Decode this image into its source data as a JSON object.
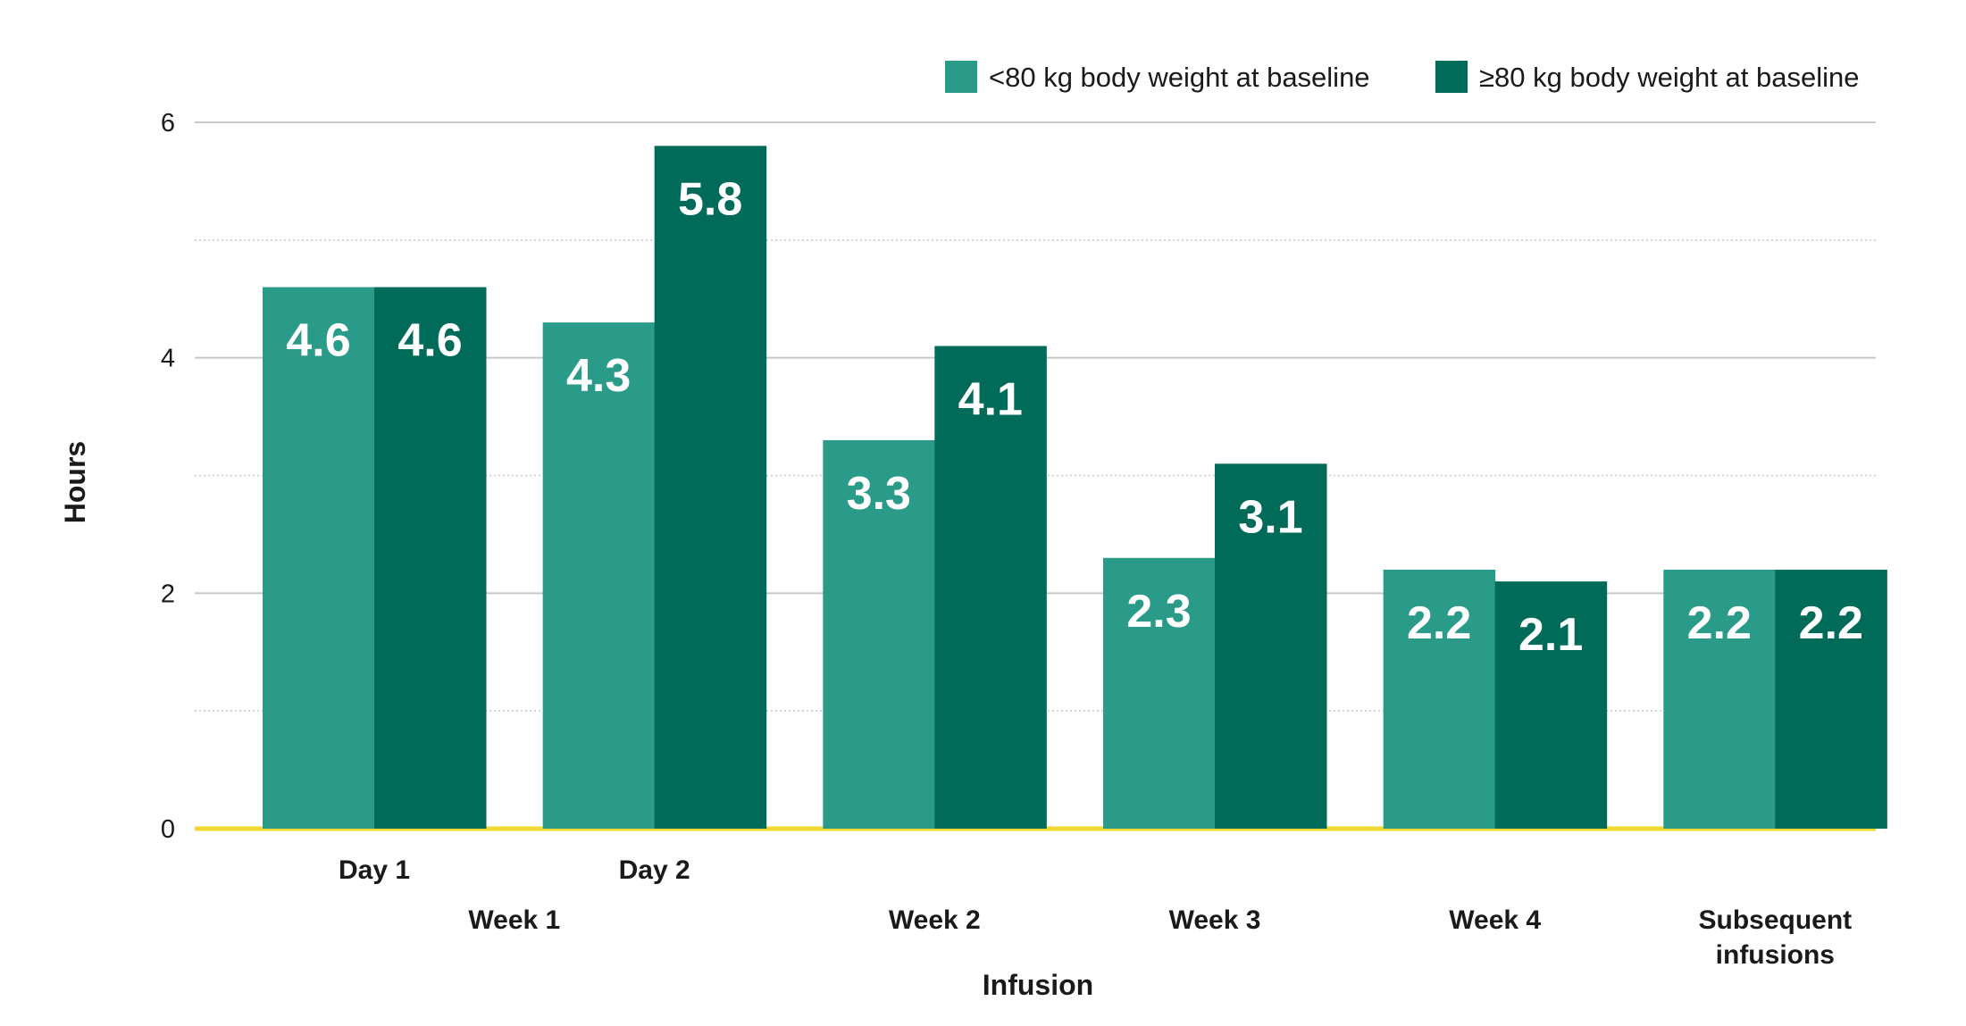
{
  "chart_data": {
    "type": "bar",
    "ylabel": "Hours",
    "xlabel": "Infusion",
    "ylim": [
      0,
      6
    ],
    "yticks": [
      0,
      2,
      4,
      6
    ],
    "grid": true,
    "legend_position": "top-right",
    "categories": [
      [
        "Day 1"
      ],
      [
        "Day 2"
      ],
      [
        "Week 2"
      ],
      [
        "Week 3"
      ],
      [
        "Week 4"
      ],
      [
        "Subsequent",
        "infusions"
      ]
    ],
    "category_groups": [
      {
        "label": "Week 1",
        "members": [
          0,
          1
        ]
      }
    ],
    "series": [
      {
        "name": "<80 kg body weight at baseline",
        "color": "#2a9a89",
        "values": [
          4.6,
          4.3,
          3.3,
          2.3,
          2.2,
          2.2
        ]
      },
      {
        "name": "≥80 kg body weight at baseline",
        "color": "#006b58",
        "values": [
          4.6,
          5.8,
          4.1,
          3.1,
          2.1,
          2.2
        ]
      }
    ],
    "baseline_color": "#f0d832",
    "grid_color": "#c8c8c8"
  }
}
